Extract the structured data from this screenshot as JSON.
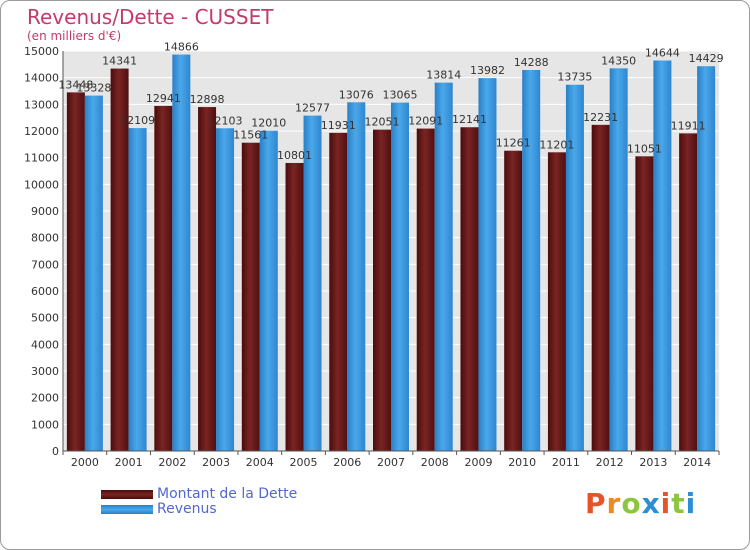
{
  "title": "Revenus/Dette - CUSSET",
  "subtitle": "(en milliers d'€)",
  "logo": "Proxiti",
  "colors": {
    "background": "#ffffff",
    "plot_background": "#e6e6e6",
    "gridline": "#ffffff",
    "title": "#c33a6b",
    "legend_text": "#5566cc",
    "series_dette": "#6b1a1a",
    "series_revenus": "#3f9fe0",
    "logo_letters": [
      "#e8542a",
      "#f08a1e",
      "#8cc63f",
      "#2a8fd6",
      "#e8542a",
      "#8cc63f",
      "#2a8fd6"
    ]
  },
  "chart_data": {
    "type": "bar",
    "title": "Revenus/Dette - CUSSET",
    "subtitle": "(en milliers d'€)",
    "xlabel": "",
    "ylabel": "",
    "ylim": [
      0,
      15000
    ],
    "yticks": [
      0,
      1000,
      2000,
      3000,
      4000,
      5000,
      6000,
      7000,
      8000,
      9000,
      10000,
      11000,
      12000,
      13000,
      14000,
      15000
    ],
    "grid": true,
    "legend": "bottom-left",
    "categories": [
      "2000",
      "2001",
      "2002",
      "2003",
      "2004",
      "2005",
      "2006",
      "2007",
      "2008",
      "2009",
      "2010",
      "2011",
      "2012",
      "2013",
      "2014"
    ],
    "series": [
      {
        "name": "Montant de la Dette",
        "values": [
          13448,
          14341,
          12941,
          12898,
          11561,
          10801,
          11931,
          12051,
          12091,
          12141,
          11261,
          11201,
          12231,
          11051,
          11911
        ],
        "labels": [
          "13448",
          "14341",
          "12941",
          "12898",
          "11561",
          "10801",
          "11931",
          "12051",
          "12091",
          "12141",
          "11261",
          "11201",
          "12231",
          "11051",
          "11911"
        ]
      },
      {
        "name": "Revenus",
        "values": [
          13328,
          12109,
          14866,
          12103,
          12010,
          12577,
          13076,
          13065,
          13814,
          13982,
          14288,
          13735,
          14350,
          14644,
          14429
        ],
        "labels": [
          "13328",
          "12109",
          "14866",
          "12103",
          "12010",
          "12577",
          "13076",
          "13065",
          "13814",
          "13982",
          "14288",
          "13735",
          "14350",
          "14644",
          "14429"
        ]
      }
    ]
  }
}
